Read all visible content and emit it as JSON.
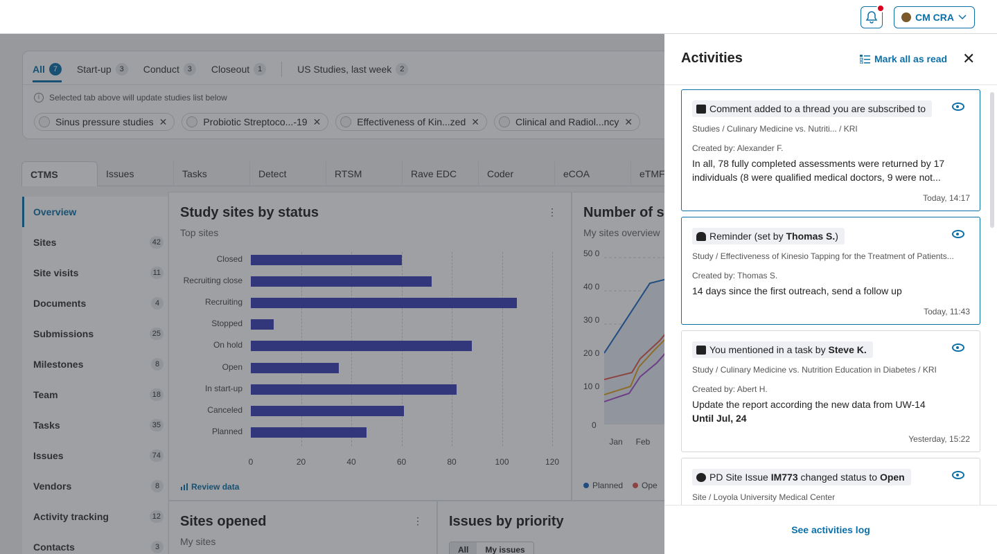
{
  "topbar": {
    "user_label": "CM CRA"
  },
  "studies": {
    "tabs": [
      {
        "label": "All",
        "count": "7"
      },
      {
        "label": "Start-up",
        "count": "3"
      },
      {
        "label": "Conduct",
        "count": "3"
      },
      {
        "label": "Closeout",
        "count": "1"
      }
    ],
    "saved_view": {
      "label": "US Studies, last week",
      "count": "2"
    },
    "info": "Selected tab above will update studies list below",
    "chips": [
      "Sinus pressure studies",
      "Probiotic Streptoco...-19",
      "Effectiveness of Kin...zed",
      "Clinical and Radiol...ncy"
    ]
  },
  "subnav": [
    "CTMS",
    "Issues",
    "Tasks",
    "Detect",
    "RTSM",
    "Rave EDC",
    "Coder",
    "eCOA",
    "eTMF"
  ],
  "sidenav": [
    {
      "label": "Overview",
      "count": ""
    },
    {
      "label": "Sites",
      "count": "42"
    },
    {
      "label": "Site visits",
      "count": "11"
    },
    {
      "label": "Documents",
      "count": "4"
    },
    {
      "label": "Submissions",
      "count": "25"
    },
    {
      "label": "Milestones",
      "count": "8"
    },
    {
      "label": "Team",
      "count": "18"
    },
    {
      "label": "Tasks",
      "count": "35"
    },
    {
      "label": "Issues",
      "count": "74"
    },
    {
      "label": "Vendors",
      "count": "8"
    },
    {
      "label": "Activity tracking",
      "count": "12"
    },
    {
      "label": "Contacts",
      "count": "3"
    }
  ],
  "sites_chart": {
    "title": "Study sites by status",
    "subtitle": "Top sites",
    "review": "Review data"
  },
  "chart_data": [
    {
      "type": "bar",
      "orientation": "horizontal",
      "title": "Study sites by status",
      "subtitle": "Top sites",
      "categories": [
        "Closed",
        "Recruiting close",
        "Recruiting",
        "Stopped",
        "On hold",
        "Open",
        "In start-up",
        "Canceled",
        "Planned"
      ],
      "values": [
        60,
        72,
        106,
        9,
        88,
        35,
        82,
        61,
        46
      ],
      "xlim": [
        0,
        120
      ],
      "xticks": [
        0,
        20,
        40,
        60,
        80,
        100,
        120
      ],
      "color": "#3b3fb5",
      "grid": "vertical dashed"
    },
    {
      "type": "line",
      "title": "Number of s",
      "subtitle": "My sites overview",
      "x": [
        "Jan",
        "Feb"
      ],
      "yticks": [
        "50\n0",
        "40\n0",
        "30\n0",
        "20\n0",
        "10\n0",
        "0"
      ],
      "series": [
        {
          "name": "Planned"
        },
        {
          "name": "Ope"
        }
      ]
    }
  ],
  "line_chart": {
    "title": "Number of s",
    "subtitle": "My sites overview",
    "x_labels": [
      "Jan",
      "Feb"
    ],
    "legend": [
      "Planned",
      "Ope"
    ]
  },
  "bottom_cards": {
    "sites_opened_title": "Sites opened",
    "sites_opened_sub": "My sites",
    "issues_title": "Issues by priority",
    "seg_all": "All",
    "seg_mine": "My issues"
  },
  "panel": {
    "title": "Activities",
    "mark_all": "Mark all as read",
    "footer": "See activities log",
    "items": [
      {
        "head_pre": "Comment added to a thread you are subscribed to",
        "head_bold": "",
        "head_post": "",
        "path": "Studies / Culinary Medicine vs. Nutriti... / KRI",
        "created": "Created by: Alexander F.",
        "text": "In all, 78 fully completed assessments were returned by 17 individuals (8 were qualified medical doctors, 9 were not...",
        "until": "",
        "time": "Today, 14:17"
      },
      {
        "head_pre": "Reminder (set by ",
        "head_bold": "Thomas S.",
        "head_post": ")",
        "path": "Study / Effectiveness of Kinesio Tapping for the Treatment of Patients...",
        "created": "Created by: Thomas S.",
        "text": "14 days since the first outreach, send a follow up",
        "until": "",
        "time": "Today, 11:43"
      },
      {
        "head_pre": "You mentioned in a task by ",
        "head_bold": "Steve K.",
        "head_post": "",
        "path": "Study / Culinary Medicine vs. Nutrition Education in Diabetes / KRI",
        "created": "Created by: Abert H.",
        "text": "Update the report according the new data from UW-14",
        "until": "Until Jul, 24",
        "time": "Yesterday, 15:22"
      },
      {
        "head_pre": "PD Site Issue ",
        "head_bold": "IM773",
        "head_mid": " changed status to ",
        "head_bold2": "Open",
        "path": "Site / Loyola University Medical Center"
      }
    ]
  }
}
